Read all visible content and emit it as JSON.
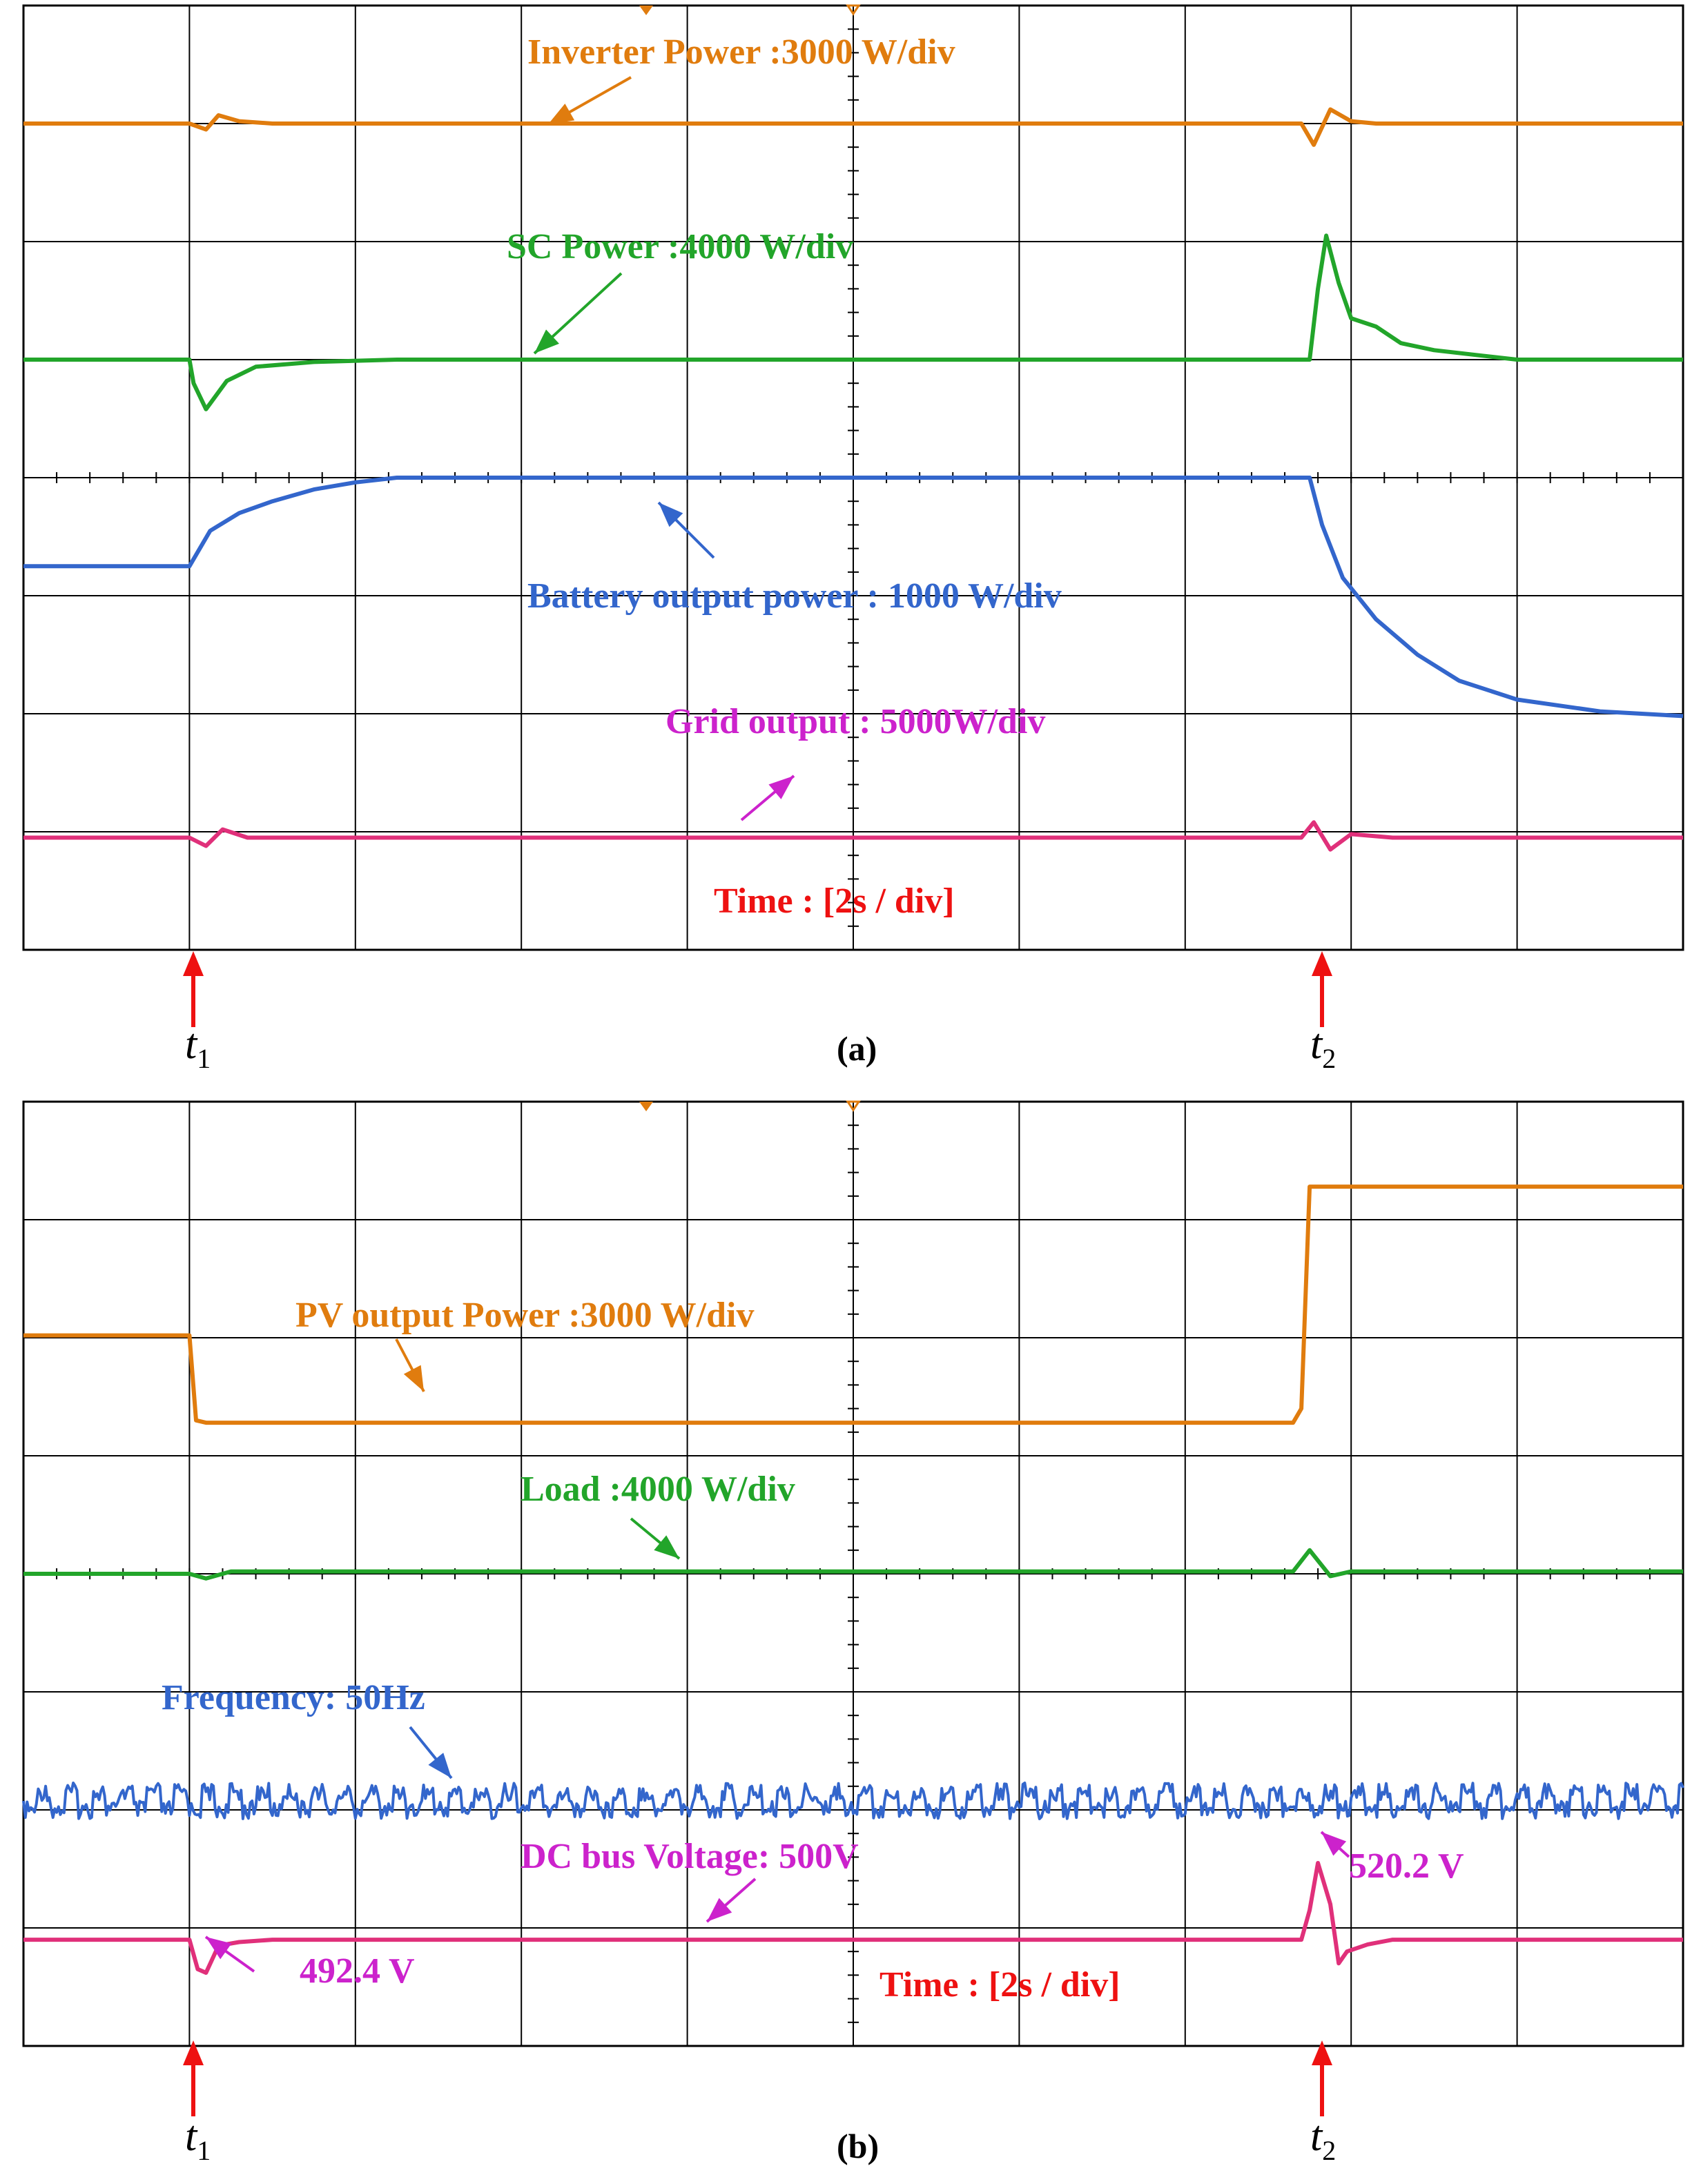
{
  "figure": {
    "colors": {
      "grid": "#000000",
      "orange": "#e07c0e",
      "green": "#22a52a",
      "blue": "#3366cc",
      "magenta": "#cc22cc",
      "pink": "#e0307a",
      "red": "#ee1111"
    }
  },
  "chart_data": [
    {
      "type": "line",
      "panel": "(a)",
      "time_label": "Time : [2s / div]",
      "x_range": [
        0,
        20
      ],
      "x_divisions": 10,
      "y_divisions": 8,
      "event_markers": [
        {
          "label": "t",
          "sub": "1",
          "x": 2.0
        },
        {
          "label": "t",
          "sub": "2",
          "x": 15.5
        }
      ],
      "series": [
        {
          "name": "Inverter Power :3000 W/div",
          "color": "#e07c0e",
          "points": [
            [
              0,
              1.0
            ],
            [
              2.0,
              1.0
            ],
            [
              2.2,
              1.05
            ],
            [
              2.35,
              0.93
            ],
            [
              2.6,
              0.98
            ],
            [
              3.0,
              1.0
            ],
            [
              15.4,
              1.0
            ],
            [
              15.55,
              1.18
            ],
            [
              15.75,
              0.88
            ],
            [
              16.0,
              0.98
            ],
            [
              16.3,
              1.0
            ],
            [
              20,
              1.0
            ]
          ]
        },
        {
          "name": "SC Power :4000 W/div",
          "color": "#22a52a",
          "points": [
            [
              0,
              3.0
            ],
            [
              2.0,
              3.0
            ],
            [
              2.05,
              3.2
            ],
            [
              2.2,
              3.42
            ],
            [
              2.45,
              3.18
            ],
            [
              2.8,
              3.06
            ],
            [
              3.5,
              3.02
            ],
            [
              4.5,
              3.0
            ],
            [
              15.5,
              3.0
            ],
            [
              15.6,
              2.4
            ],
            [
              15.7,
              1.95
            ],
            [
              15.85,
              2.35
            ],
            [
              16.0,
              2.65
            ],
            [
              16.3,
              2.72
            ],
            [
              16.6,
              2.86
            ],
            [
              17.0,
              2.92
            ],
            [
              17.5,
              2.96
            ],
            [
              18.0,
              3.0
            ],
            [
              20,
              3.0
            ]
          ]
        },
        {
          "name": "Battery output power : 1000 W/div",
          "color": "#3366cc",
          "points": [
            [
              0,
              4.75
            ],
            [
              2.0,
              4.75
            ],
            [
              2.25,
              4.45
            ],
            [
              2.6,
              4.3
            ],
            [
              3.0,
              4.2
            ],
            [
              3.5,
              4.1
            ],
            [
              4.0,
              4.04
            ],
            [
              4.5,
              4.0
            ],
            [
              15.5,
              4.0
            ],
            [
              15.65,
              4.4
            ],
            [
              15.9,
              4.85
            ],
            [
              16.3,
              5.2
            ],
            [
              16.8,
              5.5
            ],
            [
              17.3,
              5.72
            ],
            [
              18.0,
              5.88
            ],
            [
              19.0,
              5.98
            ],
            [
              20,
              6.02
            ]
          ]
        },
        {
          "name": "Grid output  : 5000W/div",
          "color": "#e0307a",
          "points": [
            [
              0,
              7.05
            ],
            [
              2.0,
              7.05
            ],
            [
              2.2,
              7.12
            ],
            [
              2.4,
              6.98
            ],
            [
              2.7,
              7.05
            ],
            [
              15.4,
              7.05
            ],
            [
              15.55,
              6.92
            ],
            [
              15.75,
              7.15
            ],
            [
              16.0,
              7.02
            ],
            [
              16.5,
              7.05
            ],
            [
              20,
              7.05
            ]
          ]
        }
      ]
    },
    {
      "type": "line",
      "panel": "(b)",
      "time_label": "Time : [2s / div]",
      "x_range": [
        0,
        20
      ],
      "x_divisions": 10,
      "y_divisions": 8,
      "event_markers": [
        {
          "label": "t",
          "sub": "1",
          "x": 2.0
        },
        {
          "label": "t",
          "sub": "2",
          "x": 15.5
        }
      ],
      "annotations": [
        {
          "text": "492.4 V",
          "color": "#cc22cc"
        },
        {
          "text": "520.2 V",
          "color": "#cc22cc"
        }
      ],
      "series": [
        {
          "name": "PV output Power :3000 W/div",
          "color": "#e07c0e",
          "points": [
            [
              0,
              1.98
            ],
            [
              2.0,
              1.98
            ],
            [
              2.08,
              2.7
            ],
            [
              2.2,
              2.72
            ],
            [
              15.3,
              2.72
            ],
            [
              15.4,
              2.6
            ],
            [
              15.5,
              0.72
            ],
            [
              15.6,
              0.72
            ],
            [
              20,
              0.72
            ]
          ]
        },
        {
          "name": "Load :4000 W/div",
          "color": "#22a52a",
          "points": [
            [
              0,
              4.0
            ],
            [
              2.0,
              4.0
            ],
            [
              2.2,
              4.04
            ],
            [
              2.5,
              3.98
            ],
            [
              3.0,
              3.98
            ],
            [
              15.3,
              3.98
            ],
            [
              15.5,
              3.8
            ],
            [
              15.75,
              4.02
            ],
            [
              16.0,
              3.98
            ],
            [
              20,
              3.98
            ]
          ]
        },
        {
          "name": "Frequency: 50Hz",
          "color": "#3366cc",
          "points": [
            [
              0,
              6.0
            ],
            [
              20,
              6.0
            ]
          ]
        },
        {
          "name": "DC bus Voltage: 500V",
          "color": "#e0307a",
          "points": [
            [
              0,
              7.1
            ],
            [
              2.0,
              7.1
            ],
            [
              2.1,
              7.35
            ],
            [
              2.2,
              7.38
            ],
            [
              2.35,
              7.15
            ],
            [
              2.6,
              7.12
            ],
            [
              3.0,
              7.1
            ],
            [
              15.4,
              7.1
            ],
            [
              15.5,
              6.85
            ],
            [
              15.6,
              6.45
            ],
            [
              15.75,
              6.8
            ],
            [
              15.85,
              7.3
            ],
            [
              15.95,
              7.2
            ],
            [
              16.2,
              7.14
            ],
            [
              16.5,
              7.1
            ],
            [
              20,
              7.1
            ]
          ]
        }
      ]
    }
  ],
  "captions": {
    "a": "(a)",
    "b": "(b)"
  },
  "time_marks": {
    "t1": {
      "base": "t",
      "sub": "1"
    },
    "t2": {
      "base": "t",
      "sub": "2"
    }
  }
}
